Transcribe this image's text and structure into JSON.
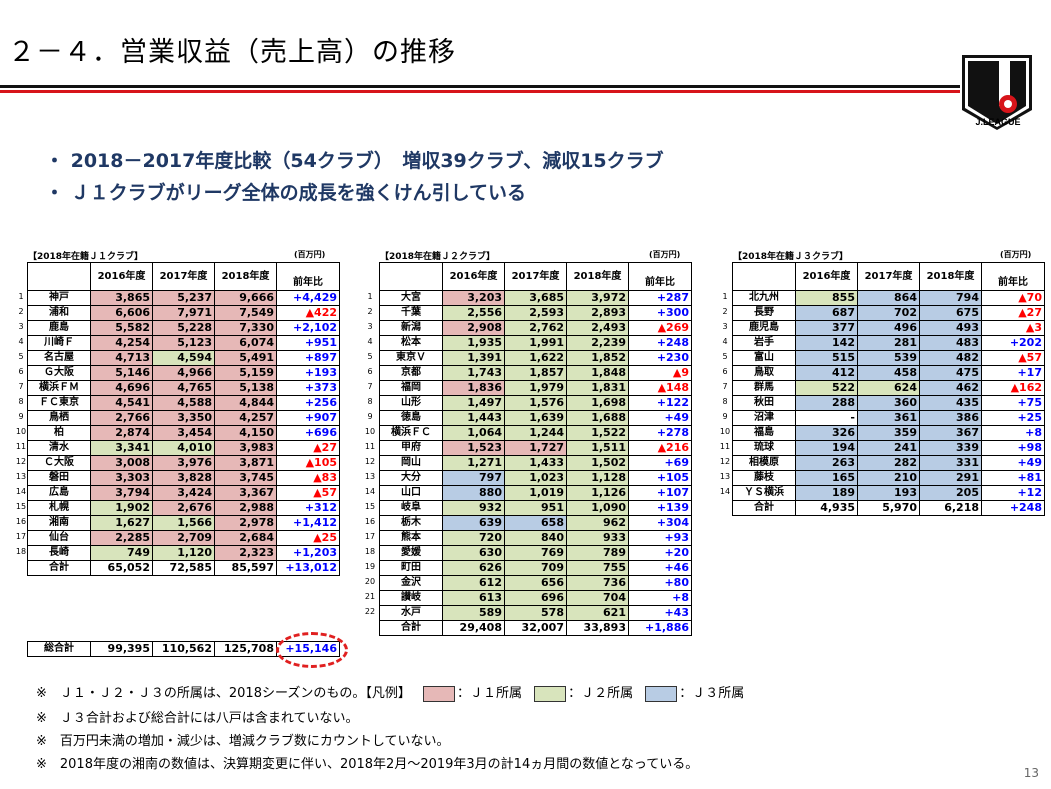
{
  "title": "２－４．営業収益（売上高）の推移",
  "logo_text": "J.LEAGUE",
  "bullets": [
    "・ 2018－2017年度比較（54クラブ）　増収39クラブ、減収15クラブ",
    "・ Ｊ１クラブがリーグ全体の成長を強くけん引している"
  ],
  "unit": "(百万円)",
  "headers": {
    "y2016": "2016年度",
    "y2017": "2017年度",
    "y2018": "2018年度",
    "diff": "前年比"
  },
  "total_label": "合計",
  "j1": {
    "label": "【2018年在籍Ｊ１クラブ】",
    "rows": [
      {
        "no": "1",
        "club": "神戸",
        "y2016": "3,865",
        "y2017": "5,237",
        "y2018": "9,666",
        "diff": "+4,429"
      },
      {
        "no": "2",
        "club": "浦和",
        "y2016": "6,606",
        "y2017": "7,971",
        "y2018": "7,549",
        "diff": "▲422"
      },
      {
        "no": "3",
        "club": "鹿島",
        "y2016": "5,582",
        "y2017": "5,228",
        "y2018": "7,330",
        "diff": "+2,102"
      },
      {
        "no": "4",
        "club": "川崎Ｆ",
        "y2016": "4,254",
        "y2017": "5,123",
        "y2018": "6,074",
        "diff": "+951"
      },
      {
        "no": "5",
        "club": "名古屋",
        "y2016": "4,713",
        "y2017": "4,594",
        "y2018": "5,491",
        "diff": "+897"
      },
      {
        "no": "6",
        "club": "Ｇ大阪",
        "y2016": "5,146",
        "y2017": "4,966",
        "y2018": "5,159",
        "diff": "+193"
      },
      {
        "no": "7",
        "club": "横浜ＦＭ",
        "y2016": "4,696",
        "y2017": "4,765",
        "y2018": "5,138",
        "diff": "+373"
      },
      {
        "no": "8",
        "club": "ＦＣ東京",
        "y2016": "4,541",
        "y2017": "4,588",
        "y2018": "4,844",
        "diff": "+256"
      },
      {
        "no": "9",
        "club": "鳥栖",
        "y2016": "2,766",
        "y2017": "3,350",
        "y2018": "4,257",
        "diff": "+907"
      },
      {
        "no": "10",
        "club": "柏",
        "y2016": "2,874",
        "y2017": "3,454",
        "y2018": "4,150",
        "diff": "+696"
      },
      {
        "no": "11",
        "club": "清水",
        "y2016": "3,341",
        "y2017": "4,010",
        "y2018": "3,983",
        "diff": "▲27"
      },
      {
        "no": "12",
        "club": "Ｃ大阪",
        "y2016": "3,008",
        "y2017": "3,976",
        "y2018": "3,871",
        "diff": "▲105"
      },
      {
        "no": "13",
        "club": "磐田",
        "y2016": "3,303",
        "y2017": "3,828",
        "y2018": "3,745",
        "diff": "▲83"
      },
      {
        "no": "14",
        "club": "広島",
        "y2016": "3,794",
        "y2017": "3,424",
        "y2018": "3,367",
        "diff": "▲57"
      },
      {
        "no": "15",
        "club": "札幌",
        "y2016": "1,902",
        "y2017": "2,676",
        "y2018": "2,988",
        "diff": "+312"
      },
      {
        "no": "16",
        "club": "湘南",
        "y2016": "1,627",
        "y2017": "1,566",
        "y2018": "2,978",
        "diff": "+1,412"
      },
      {
        "no": "17",
        "club": "仙台",
        "y2016": "2,285",
        "y2017": "2,709",
        "y2018": "2,684",
        "diff": "▲25"
      },
      {
        "no": "18",
        "club": "長崎",
        "y2016": "749",
        "y2017": "1,120",
        "y2018": "2,323",
        "diff": "+1,203"
      }
    ],
    "row_colors": [
      [
        "j1",
        "j1",
        "j1"
      ],
      [
        "j1",
        "j1",
        "j1"
      ],
      [
        "j1",
        "j1",
        "j1"
      ],
      [
        "j1",
        "j1",
        "j1"
      ],
      [
        "j1",
        "j2",
        "j1"
      ],
      [
        "j1",
        "j1",
        "j1"
      ],
      [
        "j1",
        "j1",
        "j1"
      ],
      [
        "j1",
        "j1",
        "j1"
      ],
      [
        "j1",
        "j1",
        "j1"
      ],
      [
        "j1",
        "j1",
        "j1"
      ],
      [
        "j2",
        "j2",
        "j1"
      ],
      [
        "j1",
        "j1",
        "j1"
      ],
      [
        "j1",
        "j1",
        "j1"
      ],
      [
        "j1",
        "j1",
        "j1"
      ],
      [
        "j2",
        "j1",
        "j1"
      ],
      [
        "j2",
        "j2",
        "j1"
      ],
      [
        "j1",
        "j1",
        "j1"
      ],
      [
        "j2",
        "j2",
        "j1"
      ]
    ],
    "total": {
      "y2016": "65,052",
      "y2017": "72,585",
      "y2018": "85,597",
      "diff": "+13,012"
    }
  },
  "j2": {
    "label": "【2018年在籍Ｊ２クラブ】",
    "rows": [
      {
        "no": "1",
        "club": "大宮",
        "y2016": "3,203",
        "y2017": "3,685",
        "y2018": "3,972",
        "diff": "+287"
      },
      {
        "no": "2",
        "club": "千葉",
        "y2016": "2,556",
        "y2017": "2,593",
        "y2018": "2,893",
        "diff": "+300"
      },
      {
        "no": "3",
        "club": "新潟",
        "y2016": "2,908",
        "y2017": "2,762",
        "y2018": "2,493",
        "diff": "▲269"
      },
      {
        "no": "4",
        "club": "松本",
        "y2016": "1,935",
        "y2017": "1,991",
        "y2018": "2,239",
        "diff": "+248"
      },
      {
        "no": "5",
        "club": "東京Ｖ",
        "y2016": "1,391",
        "y2017": "1,622",
        "y2018": "1,852",
        "diff": "+230"
      },
      {
        "no": "6",
        "club": "京都",
        "y2016": "1,743",
        "y2017": "1,857",
        "y2018": "1,848",
        "diff": "▲9"
      },
      {
        "no": "7",
        "club": "福岡",
        "y2016": "1,836",
        "y2017": "1,979",
        "y2018": "1,831",
        "diff": "▲148"
      },
      {
        "no": "8",
        "club": "山形",
        "y2016": "1,497",
        "y2017": "1,576",
        "y2018": "1,698",
        "diff": "+122"
      },
      {
        "no": "9",
        "club": "徳島",
        "y2016": "1,443",
        "y2017": "1,639",
        "y2018": "1,688",
        "diff": "+49"
      },
      {
        "no": "10",
        "club": "横浜ＦＣ",
        "y2016": "1,064",
        "y2017": "1,244",
        "y2018": "1,522",
        "diff": "+278"
      },
      {
        "no": "11",
        "club": "甲府",
        "y2016": "1,523",
        "y2017": "1,727",
        "y2018": "1,511",
        "diff": "▲216"
      },
      {
        "no": "12",
        "club": "岡山",
        "y2016": "1,271",
        "y2017": "1,433",
        "y2018": "1,502",
        "diff": "+69"
      },
      {
        "no": "13",
        "club": "大分",
        "y2016": "797",
        "y2017": "1,023",
        "y2018": "1,128",
        "diff": "+105"
      },
      {
        "no": "14",
        "club": "山口",
        "y2016": "880",
        "y2017": "1,019",
        "y2018": "1,126",
        "diff": "+107"
      },
      {
        "no": "15",
        "club": "岐阜",
        "y2016": "932",
        "y2017": "951",
        "y2018": "1,090",
        "diff": "+139"
      },
      {
        "no": "16",
        "club": "栃木",
        "y2016": "639",
        "y2017": "658",
        "y2018": "962",
        "diff": "+304"
      },
      {
        "no": "17",
        "club": "熊本",
        "y2016": "720",
        "y2017": "840",
        "y2018": "933",
        "diff": "+93"
      },
      {
        "no": "18",
        "club": "愛媛",
        "y2016": "630",
        "y2017": "769",
        "y2018": "789",
        "diff": "+20"
      },
      {
        "no": "19",
        "club": "町田",
        "y2016": "626",
        "y2017": "709",
        "y2018": "755",
        "diff": "+46"
      },
      {
        "no": "20",
        "club": "金沢",
        "y2016": "612",
        "y2017": "656",
        "y2018": "736",
        "diff": "+80"
      },
      {
        "no": "21",
        "club": "讃岐",
        "y2016": "613",
        "y2017": "696",
        "y2018": "704",
        "diff": "+8"
      },
      {
        "no": "22",
        "club": "水戸",
        "y2016": "589",
        "y2017": "578",
        "y2018": "621",
        "diff": "+43"
      }
    ],
    "row_colors": [
      [
        "j1",
        "j2",
        "j2"
      ],
      [
        "j2",
        "j2",
        "j2"
      ],
      [
        "j1",
        "j2",
        "j2"
      ],
      [
        "j2",
        "j2",
        "j2"
      ],
      [
        "j2",
        "j2",
        "j2"
      ],
      [
        "j2",
        "j2",
        "j2"
      ],
      [
        "j1",
        "j2",
        "j2"
      ],
      [
        "j2",
        "j2",
        "j2"
      ],
      [
        "j2",
        "j2",
        "j2"
      ],
      [
        "j2",
        "j2",
        "j2"
      ],
      [
        "j1",
        "j1",
        "j2"
      ],
      [
        "j2",
        "j2",
        "j2"
      ],
      [
        "j3",
        "j2",
        "j2"
      ],
      [
        "j3",
        "j2",
        "j2"
      ],
      [
        "j2",
        "j2",
        "j2"
      ],
      [
        "j3",
        "j3",
        "j2"
      ],
      [
        "j2",
        "j2",
        "j2"
      ],
      [
        "j2",
        "j2",
        "j2"
      ],
      [
        "j2",
        "j2",
        "j2"
      ],
      [
        "j2",
        "j2",
        "j2"
      ],
      [
        "j2",
        "j2",
        "j2"
      ],
      [
        "j2",
        "j2",
        "j2"
      ]
    ],
    "total": {
      "y2016": "29,408",
      "y2017": "32,007",
      "y2018": "33,893",
      "diff": "+1,886"
    }
  },
  "j3": {
    "label": "【2018年在籍Ｊ３クラブ】",
    "rows": [
      {
        "no": "1",
        "club": "北九州",
        "y2016": "855",
        "y2017": "864",
        "y2018": "794",
        "diff": "▲70"
      },
      {
        "no": "2",
        "club": "長野",
        "y2016": "687",
        "y2017": "702",
        "y2018": "675",
        "diff": "▲27"
      },
      {
        "no": "3",
        "club": "鹿児島",
        "y2016": "377",
        "y2017": "496",
        "y2018": "493",
        "diff": "▲3"
      },
      {
        "no": "4",
        "club": "岩手",
        "y2016": "142",
        "y2017": "281",
        "y2018": "483",
        "diff": "+202"
      },
      {
        "no": "5",
        "club": "富山",
        "y2016": "515",
        "y2017": "539",
        "y2018": "482",
        "diff": "▲57"
      },
      {
        "no": "6",
        "club": "鳥取",
        "y2016": "412",
        "y2017": "458",
        "y2018": "475",
        "diff": "+17"
      },
      {
        "no": "7",
        "club": "群馬",
        "y2016": "522",
        "y2017": "624",
        "y2018": "462",
        "diff": "▲162"
      },
      {
        "no": "8",
        "club": "秋田",
        "y2016": "288",
        "y2017": "360",
        "y2018": "435",
        "diff": "+75"
      },
      {
        "no": "9",
        "club": "沼津",
        "y2016": "-",
        "y2017": "361",
        "y2018": "386",
        "diff": "+25"
      },
      {
        "no": "10",
        "club": "福島",
        "y2016": "326",
        "y2017": "359",
        "y2018": "367",
        "diff": "+8"
      },
      {
        "no": "11",
        "club": "琉球",
        "y2016": "194",
        "y2017": "241",
        "y2018": "339",
        "diff": "+98"
      },
      {
        "no": "12",
        "club": "相模原",
        "y2016": "263",
        "y2017": "282",
        "y2018": "331",
        "diff": "+49"
      },
      {
        "no": "13",
        "club": "藤枝",
        "y2016": "165",
        "y2017": "210",
        "y2018": "291",
        "diff": "+81"
      },
      {
        "no": "14",
        "club": "ＹＳ横浜",
        "y2016": "189",
        "y2017": "193",
        "y2018": "205",
        "diff": "+12"
      }
    ],
    "row_colors": [
      [
        "j2",
        "j3",
        "j3"
      ],
      [
        "j3",
        "j3",
        "j3"
      ],
      [
        "j3",
        "j3",
        "j3"
      ],
      [
        "j3",
        "j3",
        "j3"
      ],
      [
        "j3",
        "j3",
        "j3"
      ],
      [
        "j3",
        "j3",
        "j3"
      ],
      [
        "j2",
        "j2",
        "j3"
      ],
      [
        "j3",
        "j3",
        "j3"
      ],
      [
        "none",
        "j3",
        "j3"
      ],
      [
        "j3",
        "j3",
        "j3"
      ],
      [
        "j3",
        "j3",
        "j3"
      ],
      [
        "j3",
        "j3",
        "j3"
      ],
      [
        "j3",
        "j3",
        "j3"
      ],
      [
        "j3",
        "j3",
        "j3"
      ]
    ],
    "total": {
      "y2016": "4,935",
      "y2017": "5,970",
      "y2018": "6,218",
      "diff": "+248"
    }
  },
  "grand_total": {
    "label": "総合計",
    "y2016": "99,395",
    "y2017": "110,562",
    "y2018": "125,708",
    "diff": "+15,146"
  },
  "notes": {
    "n1_prefix": "※　Ｊ１・Ｊ２・Ｊ３の所属は、2018シーズンのもの。【凡例】",
    "legend_j1": "：Ｊ１所属",
    "legend_j2": "：Ｊ２所属",
    "legend_j3": "：Ｊ３所属",
    "n2": "※　Ｊ３合計および総合計には八戸は含まれていない。",
    "n3": "※　百万円未満の増加・減少は、増減クラブ数にカウントしていない。",
    "n4": "※　2018年度の湘南の数値は、決算期変更に伴い、2018年2月～2019年3月の計14ヵ月間の数値となっている。"
  },
  "page_number": "13",
  "colors": {
    "j1": "#e6b8b7",
    "j2": "#d8e4bc",
    "j3": "#b8cce4",
    "plus": "#0000ff",
    "minus": "#ff0000",
    "bullet": "#1f3864",
    "rule_red": "#d7141a"
  }
}
